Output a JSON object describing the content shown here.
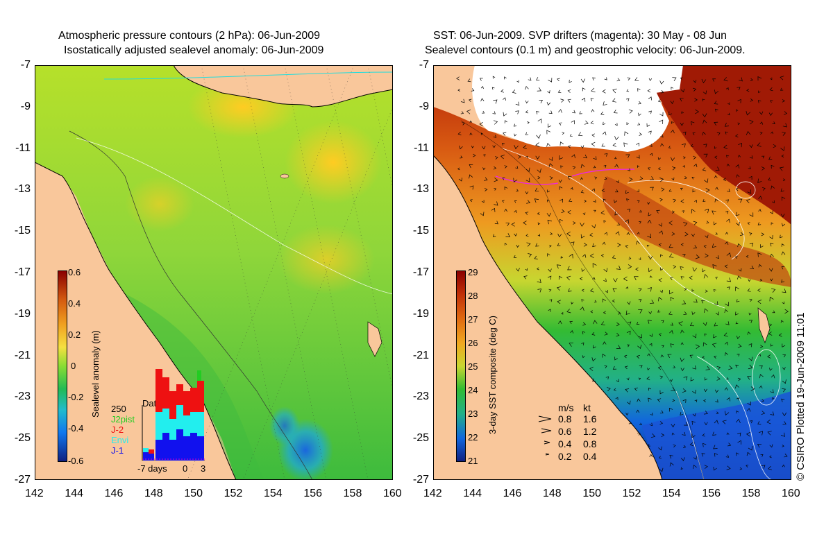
{
  "left_map": {
    "title_line1": "Atmospheric pressure contours (2 hPa): 06-Jun-2009",
    "title_line2": "Isostatically adjusted sealevel anomaly: 06-Jun-2009",
    "colorbar": {
      "label": "Sealevel anomaly (m)",
      "ticks": [
        "0.6",
        "0.4",
        "0.2",
        "0",
        "-0.2",
        "-0.4",
        "-0.6"
      ],
      "min": -0.6,
      "max": 0.6
    },
    "data_count": {
      "title": "Data count",
      "max_label": "250",
      "legend": [
        {
          "label": "J2pist",
          "color": "#22cc22"
        },
        {
          "label": "J-2",
          "color": "#ee1111"
        },
        {
          "label": "Envi",
          "color": "#22eeee"
        },
        {
          "label": "J-1",
          "color": "#1111ee"
        }
      ],
      "x_labels": [
        "-7 days",
        "0",
        "3"
      ]
    }
  },
  "right_map": {
    "title_line1": "SST: 06-Jun-2009. SVP drifters (magenta): 30 May - 08 Jun",
    "title_line2": "Sealevel contours (0.1 m) and geostrophic velocity: 06-Jun-2009.",
    "colorbar": {
      "label": "3-day SST composite (deg C)",
      "ticks": [
        "29",
        "28",
        "27",
        "26",
        "25",
        "24",
        "23",
        "22",
        "21"
      ],
      "min": 21,
      "max": 29
    },
    "velocity_legend": {
      "header_ms": "m/s",
      "header_kt": "kt",
      "rows": [
        {
          "ms": "0.8",
          "kt": "1.6"
        },
        {
          "ms": "0.6",
          "kt": "1.2"
        },
        {
          "ms": "0.4",
          "kt": "0.8"
        },
        {
          "ms": "0.2",
          "kt": "0.4"
        }
      ]
    },
    "credit": "© CSIRO Plotted 19-Jun-2009 11:01"
  },
  "axes": {
    "y_ticks": [
      "-7",
      "-9",
      "-11",
      "-13",
      "-15",
      "-17",
      "-19",
      "-21",
      "-23",
      "-25",
      "-27"
    ],
    "x_ticks": [
      "142",
      "144",
      "146",
      "148",
      "150",
      "152",
      "154",
      "156",
      "158",
      "160"
    ],
    "lon_range": [
      142,
      160
    ],
    "lat_range": [
      -27,
      -7
    ]
  },
  "colors": {
    "land": "#f9c79b",
    "sea_low": "#22aa22",
    "sea_mid": "#99dd33",
    "sea_high": "#ffcc22",
    "sst_hot": "#a01a05",
    "sst_warm": "#e07a10",
    "sst_mid": "#22bb33",
    "sst_cold": "#1144cc"
  }
}
